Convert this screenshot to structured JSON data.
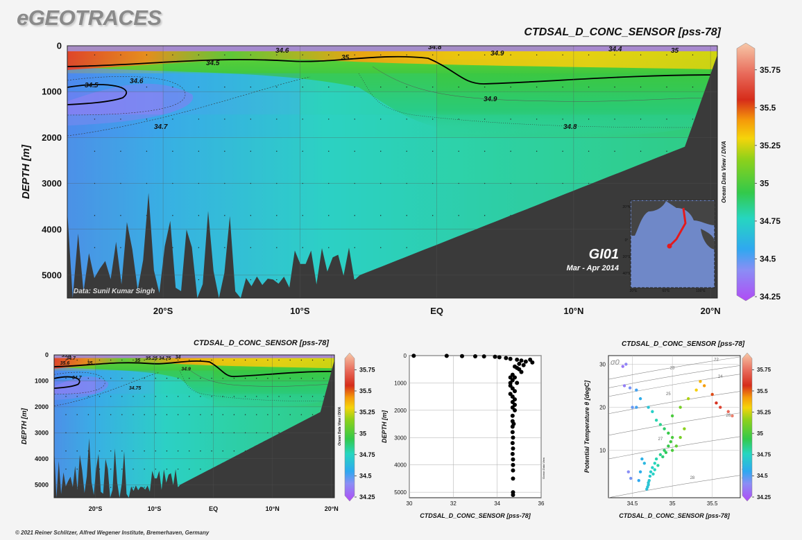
{
  "header": {
    "brand": "eGEOTRACES"
  },
  "footer": {
    "credit": "© 2021 Reiner Schlitzer, Alfred Wegener Institute, Bremerhaven, Germany"
  },
  "colors": {
    "terrain": "#3a3a3a",
    "grid": "#555555",
    "station_dot": "#222222",
    "map_track": "#e41a1c",
    "background": "#f4f4f4"
  },
  "colorbar": {
    "min": 34.25,
    "max": 35.9,
    "ticks": [
      "35.75",
      "35.5",
      "35.25",
      "35",
      "34.75",
      "34.5",
      "34.25"
    ],
    "tick_values": [
      35.75,
      35.5,
      35.25,
      35,
      34.75,
      34.5,
      34.25
    ]
  },
  "main_section": {
    "title": "CTDSAL_D_CONC_SENSOR [pss-78]",
    "ylabel": "DEPTH [m]",
    "y_ticks": [
      "0",
      "1000",
      "2000",
      "3000",
      "4000",
      "5000"
    ],
    "y_tick_values": [
      0,
      1000,
      2000,
      3000,
      4000,
      5000
    ],
    "x_ticks": [
      "20°S",
      "10°S",
      "EQ",
      "10°N",
      "20°N"
    ],
    "x_tick_values": [
      -20,
      -10,
      0,
      10,
      20
    ],
    "xlim": [
      -27,
      20.5
    ],
    "ylim": [
      0,
      5500
    ],
    "data_credit": "Data: Sunil Kumar Singh",
    "cruise": "GI01",
    "period": "Mar - Apr 2014",
    "side_label": "Ocean Data View / DIVA",
    "contour_labels": [
      "34.6",
      "34.8",
      "34.5",
      "34.9",
      "34.4",
      "35",
      "35",
      "34.5",
      "34.6",
      "34.9",
      "34.7",
      "34.8"
    ],
    "map_labels": [
      "20°N",
      "0°",
      "20°S",
      "40°S",
      "20°E",
      "60°E",
      "100°E"
    ]
  },
  "small_section": {
    "title": "CTDSAL_D_CONC_SENSOR [pss-78]",
    "ylabel": "DEPTH [m]",
    "y_ticks": [
      "0",
      "1000",
      "2000",
      "3000",
      "4000",
      "5000"
    ],
    "y_tick_values": [
      0,
      1000,
      2000,
      3000,
      4000,
      5000
    ],
    "x_ticks": [
      "20°S",
      "10°S",
      "EQ",
      "10°N",
      "20°N"
    ],
    "x_tick_values": [
      -20,
      -10,
      0,
      10,
      20
    ],
    "xlim": [
      -27,
      20.5
    ],
    "ylim": [
      0,
      5500
    ],
    "side_label": "Ocean Data View / DIVA",
    "contour_labels": [
      "34.7",
      "35.6",
      "35",
      "35",
      "35.25",
      "34.75",
      "34",
      "34.9",
      "34.7",
      "34.75",
      "35.8"
    ]
  },
  "chart_data": [
    {
      "type": "heatmap",
      "title": "CTDSAL_D_CONC_SENSOR [pss-78]",
      "xlabel": "",
      "ylabel": "DEPTH [m]",
      "x": [
        -27,
        -20,
        -10,
        0,
        10,
        20.5
      ],
      "depth_levels": [
        0,
        100,
        300,
        600,
        1000,
        1500,
        2000,
        3000,
        5500
      ],
      "values": [
        [
          35.0,
          34.6,
          34.8,
          34.9,
          34.5,
          34.4
        ],
        [
          35.5,
          35.3,
          35.2,
          35.3,
          35.2,
          35.1
        ],
        [
          35.2,
          35.0,
          35.0,
          35.0,
          35.0,
          35.0
        ],
        [
          34.6,
          34.6,
          34.85,
          34.95,
          34.95,
          34.95
        ],
        [
          34.45,
          34.55,
          34.8,
          34.9,
          34.9,
          34.9
        ],
        [
          34.62,
          34.65,
          34.77,
          34.85,
          34.85,
          34.85
        ],
        [
          34.7,
          34.72,
          34.75,
          34.78,
          34.78,
          34.8
        ],
        [
          34.72,
          34.73,
          34.73,
          34.74,
          34.74,
          34.74
        ],
        [
          34.73,
          34.73,
          34.73,
          34.73,
          34.73,
          34.73
        ]
      ],
      "colorbar_range": [
        34.25,
        35.9
      ],
      "ylim": [
        0,
        5500
      ]
    },
    {
      "type": "scatter",
      "title": "",
      "xlabel": "CTDSAL_D_CONC_SENSOR [pss-78]",
      "ylabel": "DEPTH [m]",
      "xlim": [
        30,
        36
      ],
      "ylim": [
        0,
        5200
      ],
      "x_ticks": [
        "30",
        "32",
        "34",
        "36"
      ],
      "x_tick_values": [
        30,
        32,
        34,
        36
      ],
      "y_ticks": [
        "0",
        "1000",
        "2000",
        "3000",
        "4000",
        "5000"
      ],
      "y_tick_values": [
        0,
        1000,
        2000,
        3000,
        4000,
        5000
      ],
      "side_label": "Ocean Data View",
      "points": [
        [
          30.2,
          5
        ],
        [
          31.7,
          10
        ],
        [
          32.4,
          20
        ],
        [
          33.0,
          25
        ],
        [
          33.4,
          30
        ],
        [
          33.9,
          40
        ],
        [
          34.1,
          60
        ],
        [
          34.4,
          90
        ],
        [
          34.6,
          120
        ],
        [
          34.9,
          150
        ],
        [
          35.1,
          180
        ],
        [
          35.3,
          220
        ],
        [
          35.5,
          150
        ],
        [
          35.6,
          250
        ],
        [
          35.0,
          300
        ],
        [
          35.2,
          350
        ],
        [
          34.8,
          400
        ],
        [
          34.9,
          450
        ],
        [
          35.0,
          500
        ],
        [
          35.1,
          600
        ],
        [
          34.7,
          700
        ],
        [
          34.6,
          800
        ],
        [
          34.8,
          800
        ],
        [
          34.7,
          900
        ],
        [
          34.6,
          1000
        ],
        [
          34.9,
          1000
        ],
        [
          34.6,
          1100
        ],
        [
          34.7,
          1200
        ],
        [
          34.8,
          1300
        ],
        [
          34.6,
          1400
        ],
        [
          34.7,
          1500
        ],
        [
          34.8,
          1600
        ],
        [
          34.7,
          1700
        ],
        [
          34.8,
          1800
        ],
        [
          34.7,
          1900
        ],
        [
          34.8,
          2000
        ],
        [
          34.7,
          2200
        ],
        [
          34.7,
          2400
        ],
        [
          34.75,
          2500
        ],
        [
          34.7,
          2600
        ],
        [
          34.7,
          2800
        ],
        [
          34.72,
          3000
        ],
        [
          34.7,
          3200
        ],
        [
          34.72,
          3400
        ],
        [
          34.7,
          3600
        ],
        [
          34.72,
          3800
        ],
        [
          34.72,
          4000
        ],
        [
          34.72,
          4200
        ],
        [
          34.72,
          4500
        ],
        [
          34.72,
          5000
        ],
        [
          34.72,
          5100
        ]
      ]
    },
    {
      "type": "scatter",
      "title": "CTDSAL_D_CONC_SENSOR [pss-78]",
      "xlabel": "CTDSAL_D_CONC_SENSOR [pss-78]",
      "ylabel": "Potential Temperature θ [degC]",
      "xlim": [
        34.2,
        35.85
      ],
      "ylim": [
        -1,
        32
      ],
      "x_ticks": [
        "34.5",
        "35",
        "35.5"
      ],
      "x_tick_values": [
        34.5,
        35,
        35.5
      ],
      "y_ticks": [
        "10",
        "20",
        "30"
      ],
      "y_tick_values": [
        10,
        20,
        30
      ],
      "density_label": "σ0",
      "isopycnals": [
        "22",
        "23",
        "24",
        "25",
        "26",
        "27",
        "28"
      ],
      "side_label": "Ocean Data View",
      "points": [
        [
          34.38,
          29.5
        ],
        [
          34.42,
          30
        ],
        [
          34.4,
          25
        ],
        [
          34.47,
          24.5
        ],
        [
          34.55,
          24
        ],
        [
          34.5,
          20
        ],
        [
          34.55,
          20
        ],
        [
          34.45,
          5
        ],
        [
          34.48,
          3.5
        ],
        [
          34.6,
          22
        ],
        [
          34.7,
          20
        ],
        [
          34.75,
          19
        ],
        [
          34.8,
          17
        ],
        [
          34.85,
          16
        ],
        [
          34.9,
          15
        ],
        [
          34.95,
          14
        ],
        [
          35.0,
          13
        ],
        [
          34.98,
          12
        ],
        [
          34.95,
          11
        ],
        [
          34.9,
          10
        ],
        [
          34.85,
          9
        ],
        [
          34.8,
          8
        ],
        [
          34.78,
          7
        ],
        [
          34.75,
          6
        ],
        [
          34.73,
          5
        ],
        [
          34.72,
          4
        ],
        [
          34.71,
          3
        ],
        [
          34.7,
          2.5
        ],
        [
          34.7,
          2
        ],
        [
          34.69,
          1.5
        ],
        [
          34.68,
          1
        ],
        [
          34.62,
          8
        ],
        [
          34.65,
          7
        ],
        [
          34.6,
          5
        ],
        [
          34.58,
          3
        ],
        [
          35.0,
          18
        ],
        [
          35.1,
          20
        ],
        [
          35.2,
          22
        ],
        [
          35.3,
          24
        ],
        [
          35.35,
          26
        ],
        [
          35.4,
          25
        ],
        [
          35.5,
          23
        ],
        [
          35.55,
          21
        ],
        [
          35.6,
          20
        ],
        [
          35.7,
          19
        ],
        [
          35.75,
          18
        ],
        [
          35.0,
          10
        ],
        [
          35.05,
          11
        ],
        [
          35.1,
          13
        ],
        [
          35.15,
          15
        ],
        [
          34.92,
          9.5
        ],
        [
          34.88,
          8.5
        ],
        [
          34.82,
          6.5
        ],
        [
          34.78,
          5.5
        ],
        [
          34.76,
          4.5
        ]
      ]
    }
  ]
}
